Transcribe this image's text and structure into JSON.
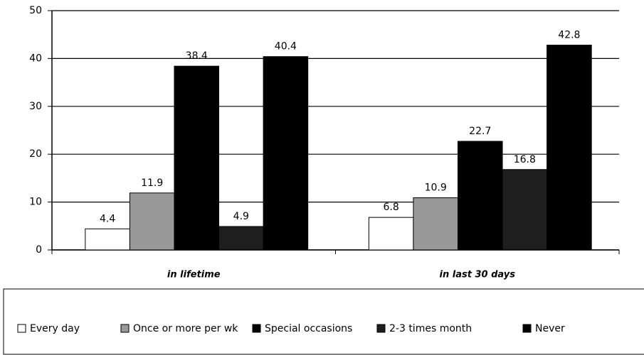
{
  "chart_data": {
    "type": "bar",
    "categories": [
      "in lifetime",
      "in last 30 days"
    ],
    "series": [
      {
        "name": "Every day",
        "color": "#ffffff",
        "values": [
          4.4,
          6.8
        ]
      },
      {
        "name": "Once or more per wk",
        "color": "#999999",
        "values": [
          11.9,
          10.9
        ]
      },
      {
        "name": "Special occasions",
        "color": "#000000",
        "values": [
          38.4,
          22.7
        ]
      },
      {
        "name": "2-3 times month",
        "color": "#1e1e1e",
        "values": [
          4.9,
          16.8
        ]
      },
      {
        "name": "Never",
        "color": "#000000",
        "values": [
          40.4,
          42.8
        ]
      }
    ],
    "ylim": [
      0,
      50
    ],
    "yticks": [
      0,
      10,
      20,
      30,
      40,
      50
    ],
    "grid": true
  }
}
